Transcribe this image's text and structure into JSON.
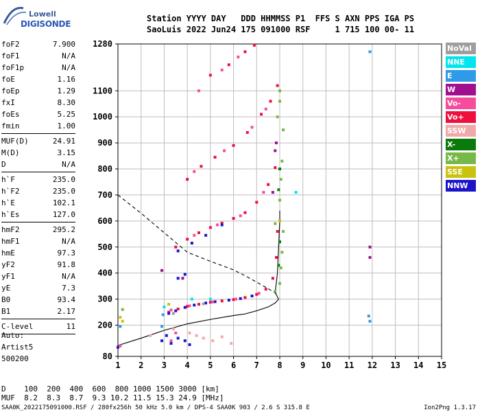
{
  "header": {
    "line1": "Station YYYY DAY   DDD HHMMSS P1  FFS S AXN PPS IGA PS",
    "line2": "SaoLuis 2022 Jun24 175 091000 RSF     1 715 100 00- 11"
  },
  "logo": {
    "top": "Lowell",
    "bottom": "DIGISONDE"
  },
  "params": [
    {
      "label": "foF2",
      "value": "7.900"
    },
    {
      "label": "foF1",
      "value": "N/A"
    },
    {
      "label": "foF1p",
      "value": "N/A"
    },
    {
      "label": "foE",
      "value": "1.16"
    },
    {
      "label": "foEp",
      "value": "1.29"
    },
    {
      "label": "fxI",
      "value": "8.30"
    },
    {
      "label": "foEs",
      "value": "5.25"
    },
    {
      "label": "fmin",
      "value": "1.00"
    },
    {
      "sep": true
    },
    {
      "label": "MUF(D)",
      "value": "24.91"
    },
    {
      "label": "M(D)",
      "value": "3.15"
    },
    {
      "label": "D",
      "value": "N/A"
    },
    {
      "sep": true
    },
    {
      "label": "h`F",
      "value": "235.0"
    },
    {
      "label": "h`F2",
      "value": "235.0"
    },
    {
      "label": "h`E",
      "value": "102.1"
    },
    {
      "label": "h`Es",
      "value": "127.0"
    },
    {
      "sep": true
    },
    {
      "label": "hmF2",
      "value": "295.2"
    },
    {
      "label": "hmF1",
      "value": "N/A"
    },
    {
      "label": "hmE",
      "value": "97.3"
    },
    {
      "label": "yF2",
      "value": "91.8"
    },
    {
      "label": "yF1",
      "value": "N/A"
    },
    {
      "label": "yE",
      "value": "7.3"
    },
    {
      "label": "B0",
      "value": "93.4"
    },
    {
      "label": "B1",
      "value": "2.17"
    },
    {
      "sep": true
    },
    {
      "label": "C-level",
      "value": "11"
    },
    {
      "sep": true
    }
  ],
  "auto": {
    "line1": "Auto:",
    "line2": "Artist5",
    "line3": "500200"
  },
  "legend": [
    {
      "label": "NoVal",
      "color": "#9e9e9e"
    },
    {
      "label": "NNE",
      "color": "#00e5ee"
    },
    {
      "label": "E",
      "color": "#2f9ae8"
    },
    {
      "label": "W",
      "color": "#a0108e"
    },
    {
      "label": "Vo-",
      "color": "#f74c9e"
    },
    {
      "label": "Vo+",
      "color": "#ee0f3c"
    },
    {
      "label": "SSW",
      "color": "#f2a8a8"
    },
    {
      "label": "X-",
      "color": "#0a7a0a"
    },
    {
      "label": "X+",
      "color": "#78b848"
    },
    {
      "label": "SSE",
      "color": "#c9c20e"
    },
    {
      "label": "NNW",
      "color": "#1b14c8"
    }
  ],
  "muf_table": {
    "line1": "D    100  200  400  600  800 1000 1500 3000 [km]",
    "line2": "MUF  8.2  8.3  8.7  9.3 10.2 11.5 15.3 24.9 [MHz]"
  },
  "footer": {
    "left": "SAA0K_2022175091000.RSF / 280fx256h 50 kHz 5.0 km / DPS-4 SAA0K 903 / 2.6 S 315.8 E",
    "right": "Ion2Png 1.3.17"
  },
  "chart_data": {
    "type": "scatter",
    "title": "",
    "xlabel": "",
    "ylabel": "",
    "xlim": [
      1,
      15
    ],
    "ylim": [
      80,
      1280
    ],
    "xticks": [
      1,
      2,
      3,
      4,
      5,
      6,
      7,
      8,
      9,
      10,
      11,
      12,
      13,
      14,
      15
    ],
    "yticks": [
      80,
      200,
      300,
      400,
      500,
      600,
      700,
      800,
      900,
      1000,
      1100,
      1280
    ],
    "grid": true,
    "series": [
      {
        "name": "Vo+",
        "color": "#ee0f3c",
        "points": [
          [
            3.2,
            250
          ],
          [
            3.6,
            262
          ],
          [
            4.0,
            272
          ],
          [
            4.5,
            280
          ],
          [
            5.0,
            288
          ],
          [
            5.5,
            293
          ],
          [
            6.0,
            298
          ],
          [
            6.5,
            306
          ],
          [
            7.0,
            318
          ],
          [
            7.4,
            338
          ],
          [
            7.7,
            380
          ],
          [
            7.85,
            460
          ],
          [
            7.9,
            560
          ],
          [
            3.5,
            500
          ],
          [
            4.0,
            530
          ],
          [
            4.5,
            555
          ],
          [
            5.0,
            575
          ],
          [
            5.5,
            592
          ],
          [
            6.0,
            610
          ],
          [
            6.5,
            632
          ],
          [
            7.0,
            672
          ],
          [
            7.5,
            740
          ],
          [
            7.8,
            805
          ],
          [
            4.0,
            760
          ],
          [
            4.6,
            810
          ],
          [
            5.2,
            845
          ],
          [
            6.0,
            890
          ],
          [
            6.6,
            940
          ],
          [
            7.2,
            1010
          ],
          [
            7.6,
            1060
          ],
          [
            7.9,
            1120
          ],
          [
            5.0,
            1160
          ],
          [
            5.8,
            1200
          ],
          [
            6.5,
            1250
          ],
          [
            6.9,
            1275
          ]
        ]
      },
      {
        "name": "NNW",
        "color": "#1b14c8",
        "points": [
          [
            3.2,
            245
          ],
          [
            3.5,
            255
          ],
          [
            3.9,
            268
          ],
          [
            4.3,
            277
          ],
          [
            4.8,
            285
          ],
          [
            5.2,
            290
          ],
          [
            5.8,
            296
          ],
          [
            6.3,
            302
          ],
          [
            6.8,
            312
          ],
          [
            3.6,
            485
          ],
          [
            4.2,
            515
          ],
          [
            4.8,
            545
          ],
          [
            3.6,
            380
          ],
          [
            3.9,
            395
          ],
          [
            5.5,
            585
          ],
          [
            1.0,
            115
          ],
          [
            2.9,
            140
          ],
          [
            3.1,
            160
          ],
          [
            3.3,
            130
          ],
          [
            3.6,
            150
          ],
          [
            3.9,
            140
          ],
          [
            4.1,
            125
          ]
        ]
      },
      {
        "name": "Vo-",
        "color": "#f74c9e",
        "points": [
          [
            3.3,
            258
          ],
          [
            4.1,
            274
          ],
          [
            5.1,
            289
          ],
          [
            6.1,
            300
          ],
          [
            7.1,
            322
          ],
          [
            4.3,
            545
          ],
          [
            5.3,
            585
          ],
          [
            6.3,
            620
          ],
          [
            7.3,
            710
          ],
          [
            4.3,
            790
          ],
          [
            5.6,
            870
          ],
          [
            6.8,
            960
          ],
          [
            7.4,
            1030
          ],
          [
            4.5,
            1100
          ],
          [
            5.5,
            1180
          ],
          [
            6.2,
            1230
          ],
          [
            3.3,
            140
          ],
          [
            3.5,
            170
          ],
          [
            1.1,
            120
          ]
        ]
      },
      {
        "name": "X+",
        "color": "#78b848",
        "points": [
          [
            7.8,
            330
          ],
          [
            8.0,
            360
          ],
          [
            8.05,
            420
          ],
          [
            8.1,
            480
          ],
          [
            8.15,
            560
          ],
          [
            7.8,
            590
          ],
          [
            8.0,
            680
          ],
          [
            8.05,
            760
          ],
          [
            8.1,
            830
          ],
          [
            7.9,
            1000
          ],
          [
            8.0,
            1060
          ],
          [
            8.0,
            1100
          ],
          [
            8.15,
            950
          ],
          [
            1.2,
            260
          ]
        ]
      },
      {
        "name": "X-",
        "color": "#0a7a0a",
        "points": [
          [
            7.95,
            430
          ],
          [
            8.0,
            520
          ],
          [
            7.95,
            720
          ],
          [
            8.0,
            800
          ]
        ]
      },
      {
        "name": "W",
        "color": "#a0108e",
        "points": [
          [
            7.8,
            870
          ],
          [
            7.85,
            900
          ],
          [
            7.7,
            710
          ],
          [
            11.9,
            500
          ],
          [
            11.9,
            460
          ],
          [
            3.8,
            380
          ],
          [
            2.9,
            410
          ]
        ]
      },
      {
        "name": "E",
        "color": "#2f9ae8",
        "points": [
          [
            11.9,
            1250
          ],
          [
            11.9,
            215
          ],
          [
            11.85,
            235
          ],
          [
            2.9,
            195
          ],
          [
            2.95,
            240
          ],
          [
            1.1,
            195
          ]
        ]
      },
      {
        "name": "NNE",
        "color": "#00e5ee",
        "points": [
          [
            8.7,
            710
          ],
          [
            3.0,
            270
          ],
          [
            4.2,
            300
          ],
          [
            5.0,
            300
          ]
        ]
      },
      {
        "name": "SSW",
        "color": "#f2a8a8",
        "points": [
          [
            4.1,
            170
          ],
          [
            4.4,
            160
          ],
          [
            4.7,
            150
          ],
          [
            5.1,
            140
          ],
          [
            5.5,
            155
          ],
          [
            5.9,
            130
          ],
          [
            3.4,
            185
          ],
          [
            2.4,
            160
          ]
        ]
      },
      {
        "name": "SSE",
        "color": "#c9c20e",
        "points": [
          [
            1.1,
            230
          ],
          [
            1.2,
            215
          ],
          [
            3.2,
            280
          ],
          [
            8.0,
            600
          ]
        ]
      },
      {
        "name": "NoVal",
        "color": "#9e9e9e",
        "points": [
          [
            3.4,
            245
          ],
          [
            4.7,
            282
          ]
        ]
      }
    ],
    "lines": [
      {
        "style": "solid",
        "points": [
          [
            1,
            122
          ],
          [
            2,
            150
          ],
          [
            3,
            180
          ],
          [
            4,
            205
          ],
          [
            5,
            222
          ],
          [
            6,
            237
          ],
          [
            6.5,
            243
          ],
          [
            7,
            255
          ],
          [
            7.5,
            270
          ],
          [
            7.8,
            285
          ],
          [
            7.95,
            300
          ],
          [
            7.8,
            325
          ],
          [
            7.9,
            400
          ],
          [
            7.95,
            500
          ],
          [
            8.0,
            600
          ],
          [
            8.0,
            640
          ]
        ]
      },
      {
        "style": "dashed",
        "points": [
          [
            1,
            700
          ],
          [
            2,
            630
          ],
          [
            3,
            555
          ],
          [
            4,
            480
          ],
          [
            5,
            445
          ],
          [
            6,
            412
          ],
          [
            6.5,
            390
          ],
          [
            7,
            365
          ],
          [
            7.5,
            340
          ],
          [
            7.9,
            318
          ]
        ]
      }
    ]
  }
}
